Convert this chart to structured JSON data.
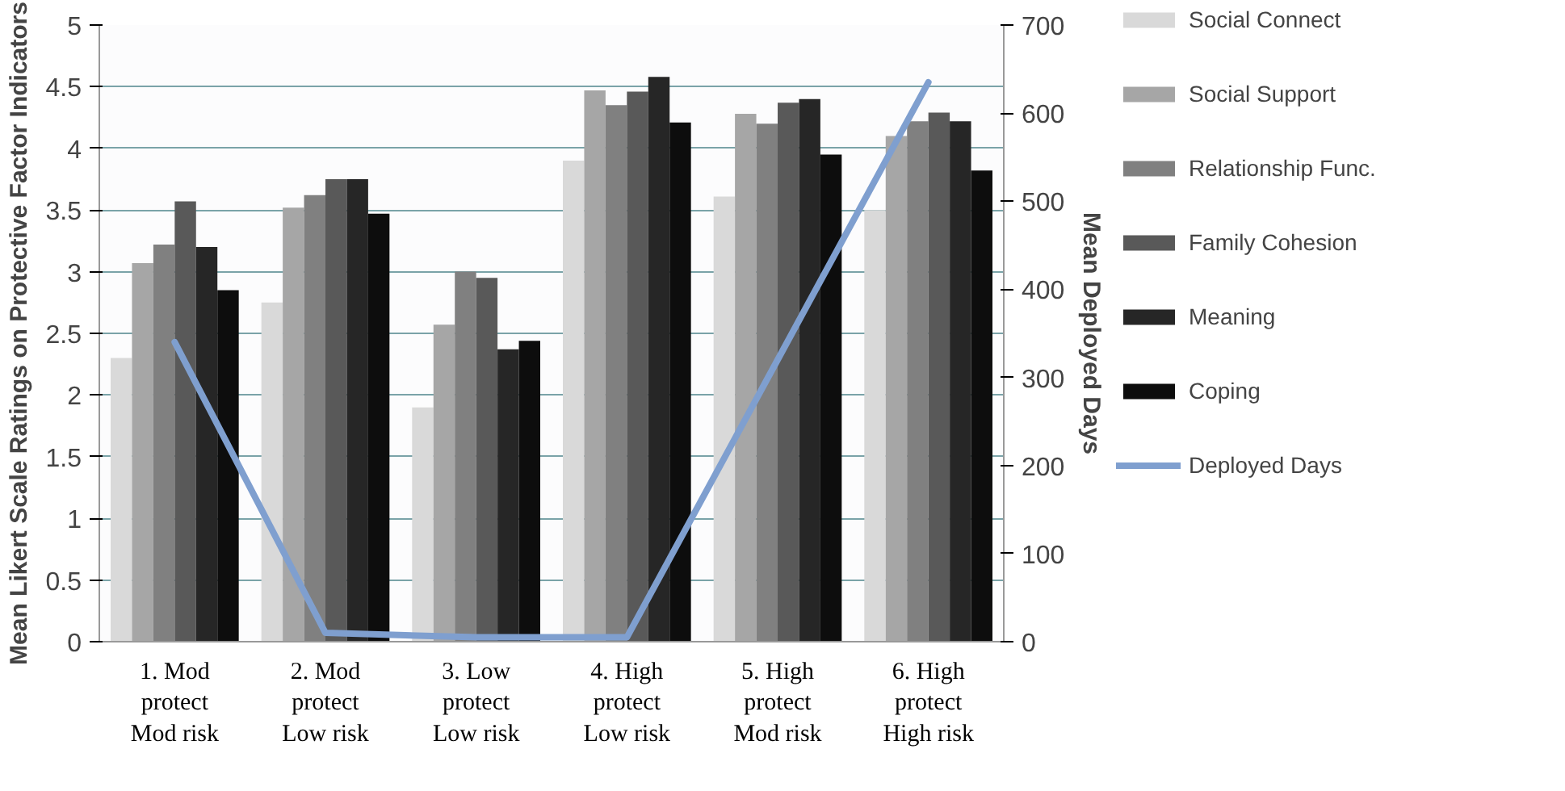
{
  "chart_data": {
    "type": "bar",
    "ylabel": "Mean Likert Scale Ratings on Protective Factor Indicators",
    "y2label": "Mean Deployed Days",
    "categories": [
      "1. Mod\nprotect\nMod risk",
      "2. Mod\nprotect\nLow risk",
      "3. Low\nprotect\nLow risk",
      "4. High\nprotect\nLow risk",
      "5. High\nprotect\nMod risk",
      "6. High\nprotect\nHigh risk"
    ],
    "ylim": [
      0,
      5
    ],
    "yticks": [
      0,
      0.5,
      1,
      1.5,
      2,
      2.5,
      3,
      3.5,
      4,
      4.5,
      5
    ],
    "y2lim": [
      0,
      700
    ],
    "y2ticks": [
      0,
      100,
      200,
      300,
      400,
      500,
      600,
      700
    ],
    "grid": "y",
    "legend": "right",
    "series": [
      {
        "name": "Social Connect",
        "color": "#d9d9d9",
        "values": [
          2.3,
          2.75,
          1.9,
          3.9,
          3.61,
          3.5
        ]
      },
      {
        "name": "Social Support",
        "color": "#a6a6a6",
        "values": [
          3.07,
          3.52,
          2.57,
          4.47,
          4.28,
          4.1
        ]
      },
      {
        "name": "Relationship Func.",
        "color": "#808080",
        "values": [
          3.22,
          3.62,
          3.0,
          4.35,
          4.2,
          4.22
        ]
      },
      {
        "name": "Family Cohesion",
        "color": "#595959",
        "values": [
          3.57,
          3.75,
          2.95,
          4.46,
          4.37,
          4.29
        ]
      },
      {
        "name": "Meaning",
        "color": "#262626",
        "values": [
          3.2,
          3.75,
          2.37,
          4.58,
          4.4,
          4.22
        ]
      },
      {
        "name": "Coping",
        "color": "#0d0d0d",
        "values": [
          2.85,
          3.47,
          2.44,
          4.21,
          3.95,
          3.82
        ]
      },
      {
        "name": "Deployed Days",
        "type": "line",
        "axis": "y2",
        "color": "#7f9fcf",
        "values": [
          340,
          10,
          5,
          5,
          320,
          635
        ]
      }
    ]
  }
}
